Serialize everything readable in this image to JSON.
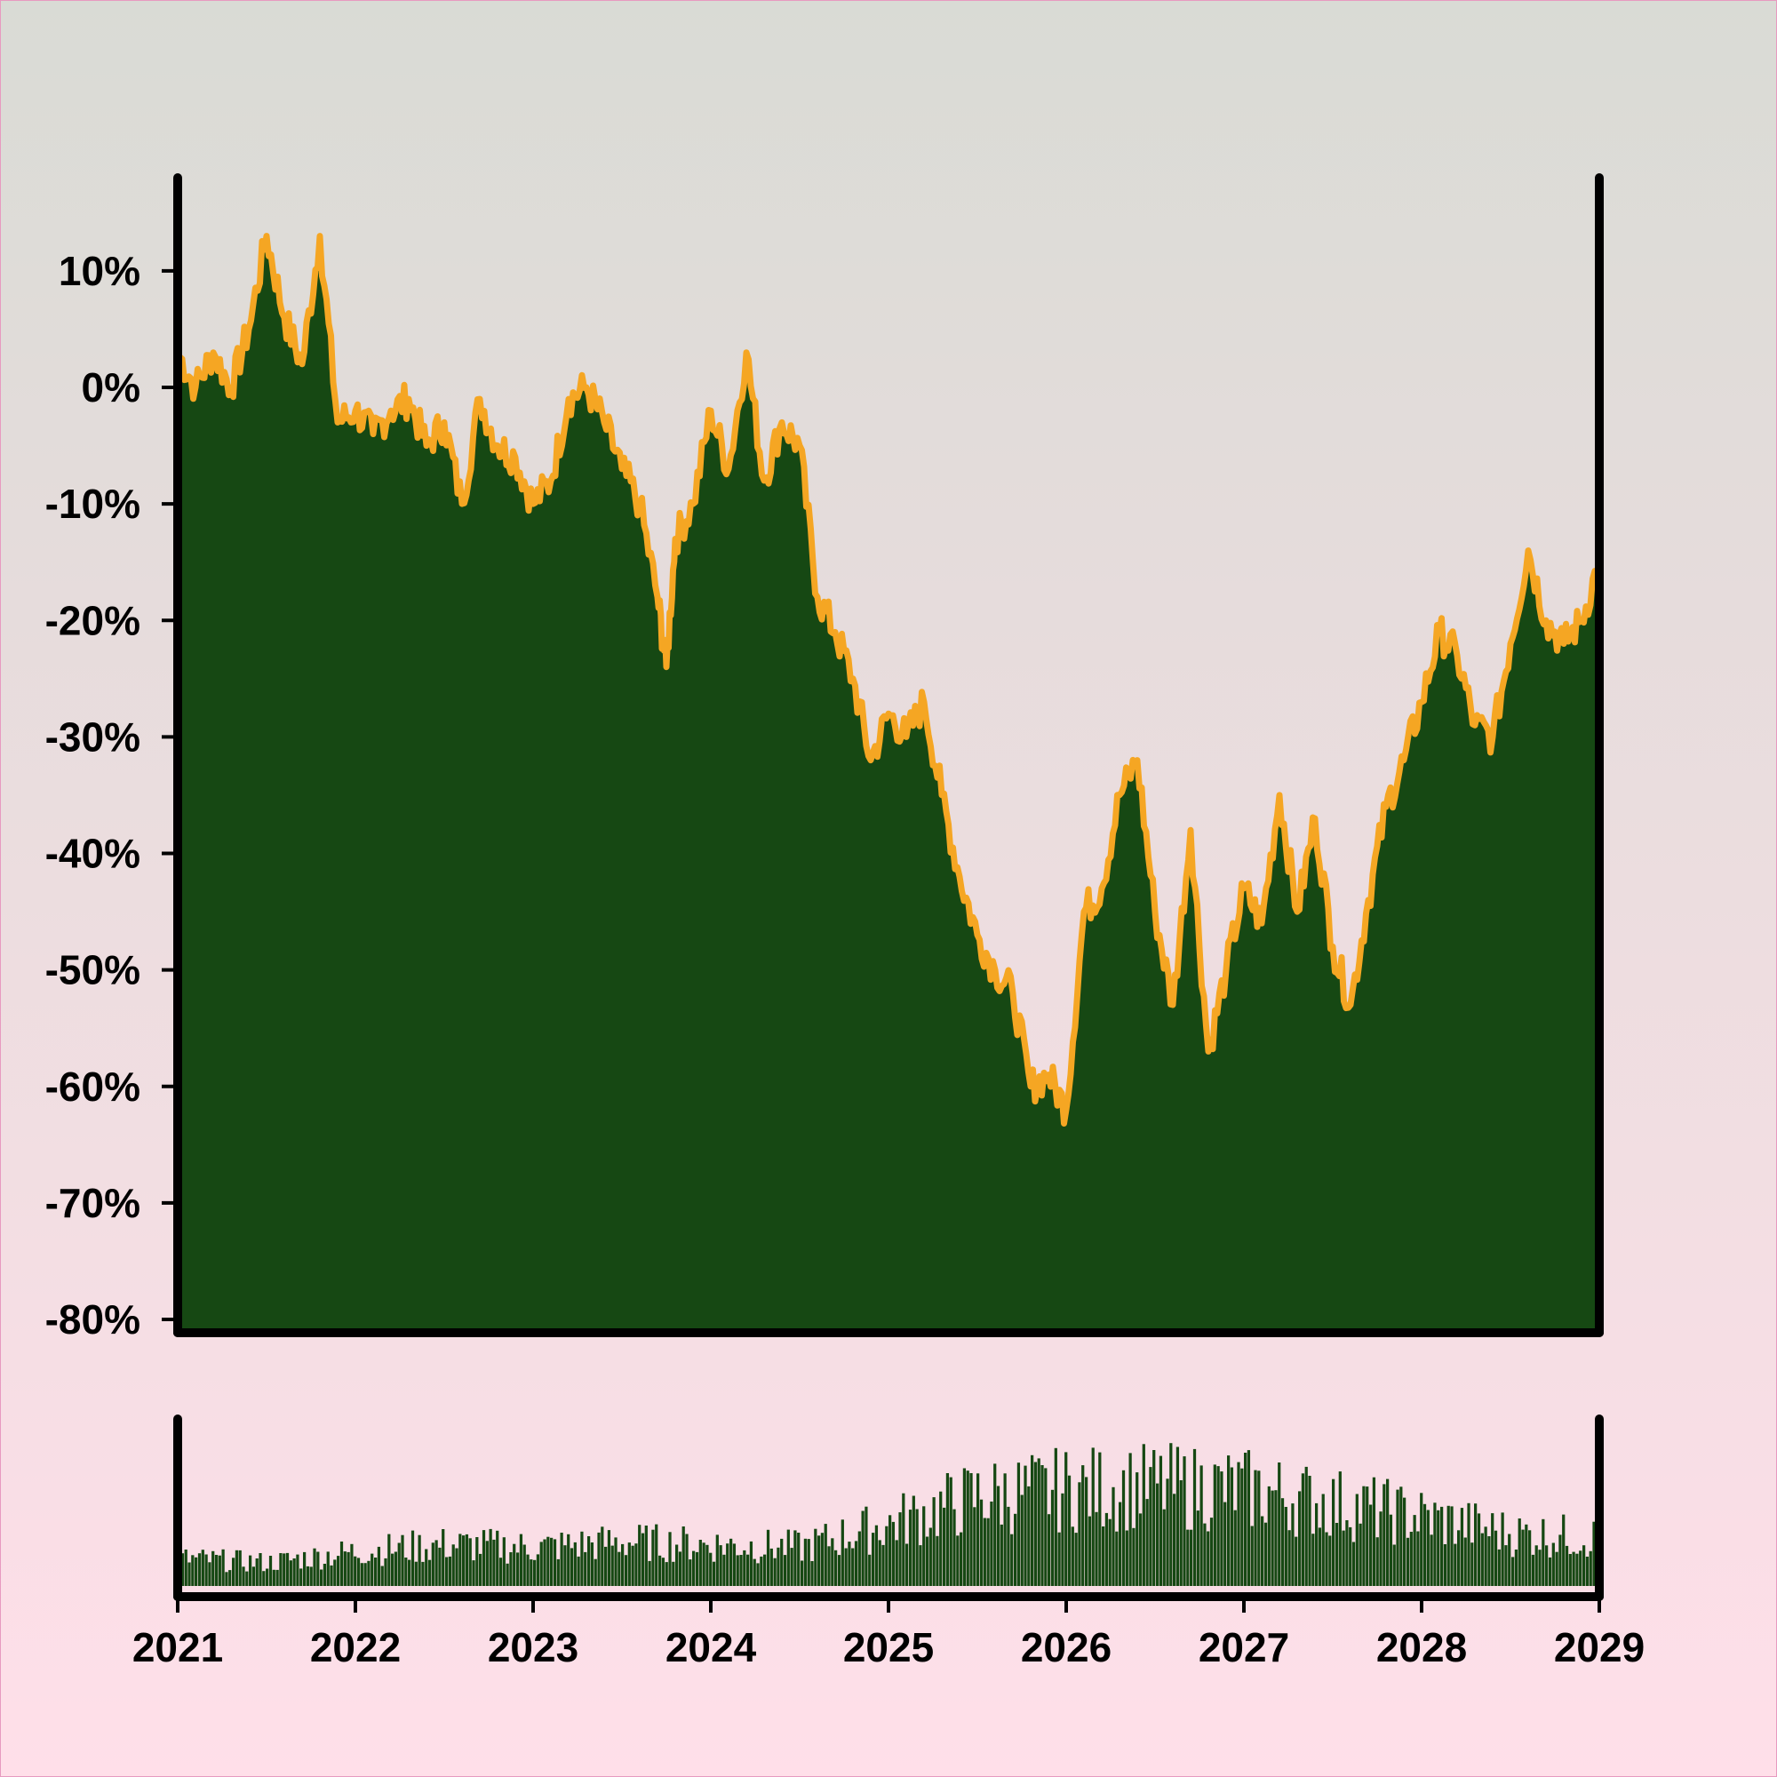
{
  "colors": {
    "background_top": "#d9dbd5",
    "background_bottom": "#ffdfe9",
    "border": "#e79ac0",
    "area_fill": "#164813",
    "line": "#f5a623",
    "axis": "#000000",
    "volume_fill": "#164813"
  },
  "chart_data": [
    {
      "type": "area",
      "title": "",
      "xlabel": "",
      "ylabel": "",
      "x_tick_labels": [
        "2021",
        "2022",
        "2023",
        "2024",
        "2025",
        "2026",
        "2027",
        "2028",
        "2029"
      ],
      "y_tick_labels": [
        "10%",
        "0%",
        "-10%",
        "-20%",
        "-30%",
        "-40%",
        "-50%",
        "-60%",
        "-70%",
        "-80%"
      ],
      "y_ticks": [
        10,
        0,
        -10,
        -20,
        -30,
        -40,
        -50,
        -60,
        -70,
        -80
      ],
      "xlim": [
        2021.0,
        2029.0
      ],
      "ylim": [
        -80,
        18
      ],
      "grid": false,
      "series": [
        {
          "x": [
            2021.0,
            2021.1,
            2021.2,
            2021.3,
            2021.4,
            2021.5,
            2021.6,
            2021.7,
            2021.8,
            2021.9,
            2022.0,
            2022.1,
            2022.2,
            2022.3,
            2022.4,
            2022.5,
            2022.6,
            2022.7,
            2022.8,
            2022.9,
            2023.0,
            2023.1,
            2023.2,
            2023.3,
            2023.4,
            2023.5,
            2023.6,
            2023.7,
            2023.75,
            2023.8,
            2023.9,
            2024.0,
            2024.1,
            2024.2,
            2024.3,
            2024.4,
            2024.5,
            2024.6,
            2024.7,
            2024.8,
            2024.9,
            2025.0,
            2025.1,
            2025.2,
            2025.3,
            2025.4,
            2025.5,
            2025.6,
            2025.7,
            2025.8,
            2025.9,
            2026.0,
            2026.1,
            2026.2,
            2026.3,
            2026.4,
            2026.5,
            2026.6,
            2026.7,
            2026.8,
            2026.9,
            2027.0,
            2027.1,
            2027.2,
            2027.3,
            2027.4,
            2027.5,
            2027.6,
            2027.7,
            2027.8,
            2027.9,
            2028.0,
            2028.1,
            2028.2,
            2028.3,
            2028.4,
            2028.5,
            2028.6,
            2028.7,
            2028.8,
            2028.9,
            2029.0
          ],
          "values": [
            3,
            0,
            3,
            0,
            5,
            13,
            6,
            2,
            13,
            -3,
            -2,
            -4,
            -2,
            -1,
            -5,
            -3,
            -10,
            -1,
            -5,
            -6,
            -10,
            -8,
            -1,
            0,
            -3,
            -7,
            -10,
            -18,
            -24,
            -13,
            -10,
            -2,
            -7,
            3,
            -8,
            -3,
            -5,
            -18,
            -21,
            -25,
            -32,
            -28,
            -30,
            -27,
            -35,
            -42,
            -47,
            -50,
            -52,
            -60,
            -59,
            -62,
            -45,
            -43,
            -35,
            -32,
            -45,
            -53,
            -38,
            -57,
            -50,
            -43,
            -46,
            -35,
            -45,
            -37,
            -48,
            -53,
            -44,
            -36,
            -32,
            -27,
            -21,
            -23,
            -29,
            -30,
            -22,
            -14,
            -20,
            -22,
            -20,
            -15
          ]
        }
      ]
    },
    {
      "type": "bar",
      "title": "",
      "xlabel": "",
      "ylabel": "",
      "xlim": [
        2021.0,
        2029.0
      ],
      "ylim": [
        0,
        1
      ],
      "y_axis_labels": "none",
      "series": [
        {
          "x": [
            2021.0,
            2021.5,
            2022.0,
            2022.5,
            2023.0,
            2023.5,
            2024.0,
            2024.5,
            2025.0,
            2025.5,
            2026.0,
            2026.5,
            2027.0,
            2027.5,
            2028.0,
            2028.5,
            2029.0
          ],
          "values": [
            0.2,
            0.17,
            0.25,
            0.3,
            0.28,
            0.32,
            0.3,
            0.28,
            0.45,
            0.65,
            0.7,
            0.72,
            0.7,
            0.6,
            0.5,
            0.38,
            0.35
          ]
        }
      ]
    }
  ]
}
